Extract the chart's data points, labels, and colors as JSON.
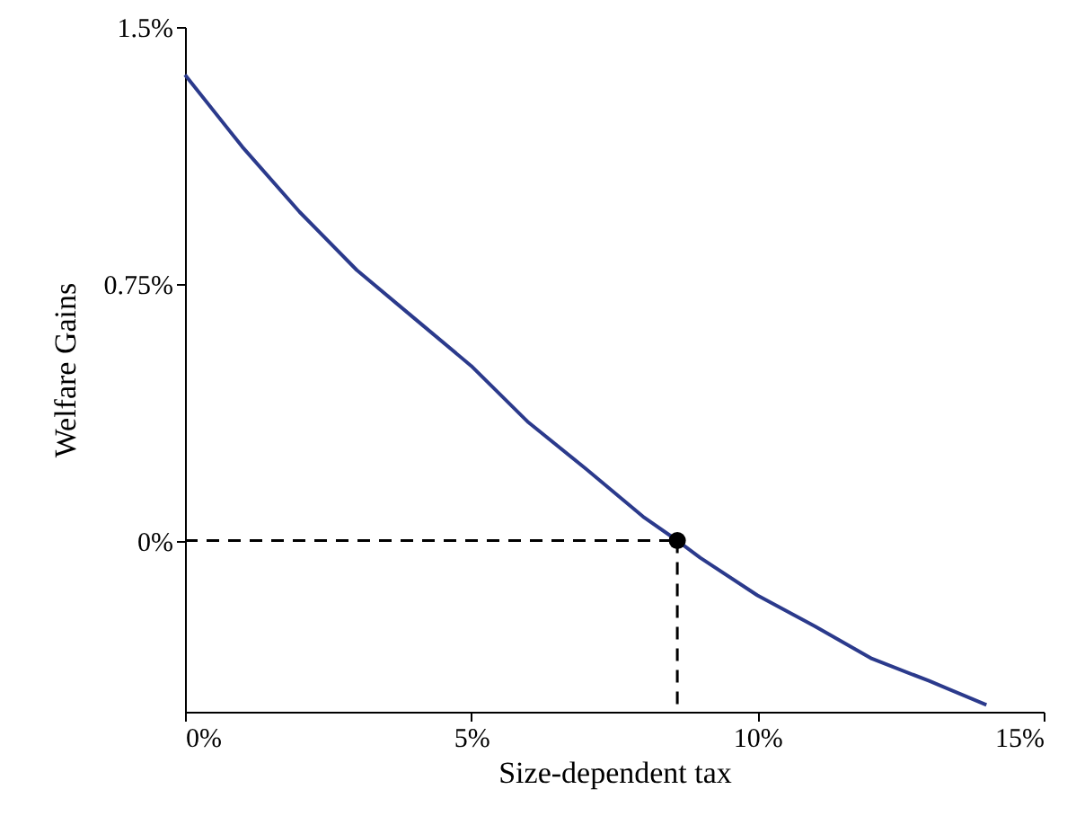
{
  "chart_data": {
    "type": "line",
    "xlabel": "Size-dependent tax",
    "ylabel": "Welfare Gains",
    "xlim": [
      0,
      15
    ],
    "ylim": [
      -0.5,
      1.5
    ],
    "xticks": [
      {
        "value": 0,
        "label": "0%"
      },
      {
        "value": 5,
        "label": "5%"
      },
      {
        "value": 10,
        "label": "10%"
      },
      {
        "value": 15,
        "label": "15%"
      }
    ],
    "yticks": [
      {
        "value": 0,
        "label": "0%"
      },
      {
        "value": 0.75,
        "label": "0.75%"
      },
      {
        "value": 1.5,
        "label": "1.5%"
      }
    ],
    "grid": false,
    "series": [
      {
        "color": "#2b3a8c",
        "line_style": "solid",
        "x": [
          0,
          1,
          2,
          3,
          4,
          5,
          6,
          7,
          8,
          8.6,
          9,
          10,
          11,
          12,
          13,
          14
        ],
        "values": [
          1.36,
          1.15,
          0.96,
          0.79,
          0.65,
          0.51,
          0.345,
          0.21,
          0.07,
          0,
          -0.05,
          -0.16,
          -0.25,
          -0.345,
          -0.41,
          -0.48
        ]
      },
      {
        "type": "line",
        "color": "#000000",
        "line_style": "dashed",
        "x": [
          0,
          8.6
        ],
        "values": [
          0,
          0
        ]
      },
      {
        "type": "line",
        "color": "#000000",
        "line_style": "dashed",
        "x": [
          8.6,
          8.6
        ],
        "values": [
          0,
          -0.5
        ]
      },
      {
        "type": "scatter",
        "color": "#000000",
        "marker": "circle",
        "x": [
          8.6
        ],
        "values": [
          0
        ]
      }
    ]
  }
}
